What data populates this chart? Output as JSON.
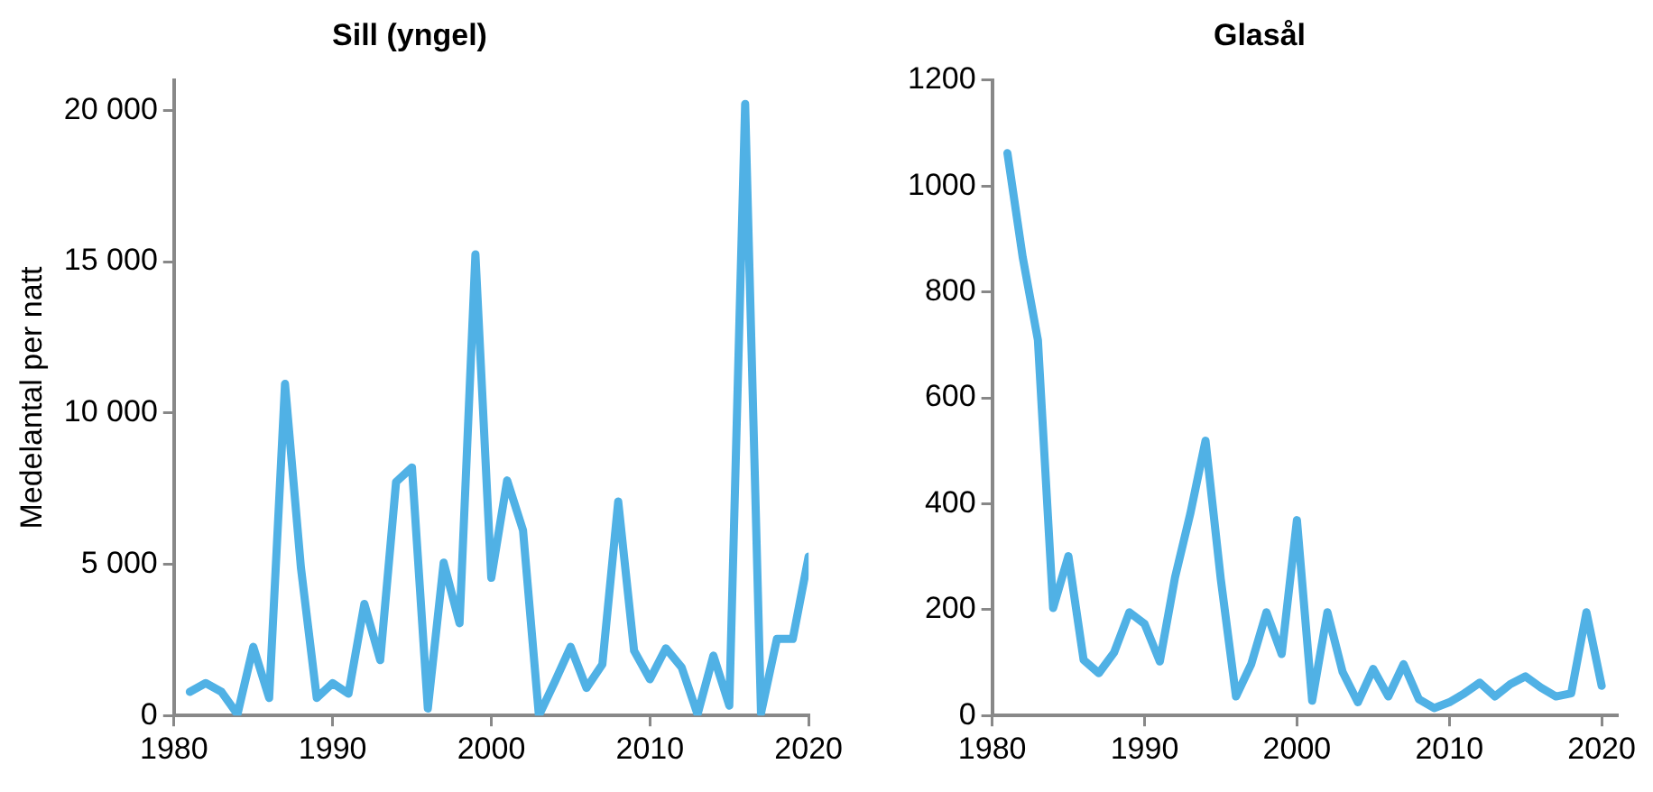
{
  "chart_data": [
    {
      "type": "line",
      "title": "Sill (yngel)",
      "ylabel": "Medelantal per natt",
      "color": "#50b1e5",
      "grid": false,
      "legend": false,
      "marker": "none",
      "line_style": "solid",
      "x": [
        1981,
        1982,
        1983,
        1984,
        1985,
        1986,
        1987,
        1988,
        1989,
        1990,
        1991,
        1992,
        1993,
        1994,
        1995,
        1996,
        1997,
        1998,
        1999,
        2000,
        2001,
        2002,
        2003,
        2004,
        2005,
        2006,
        2007,
        2008,
        2009,
        2010,
        2011,
        2012,
        2013,
        2014,
        2015,
        2016,
        2017,
        2018,
        2019,
        2020
      ],
      "values": [
        780,
        1070,
        780,
        40,
        2270,
        580,
        10960,
        4900,
        580,
        1070,
        720,
        3690,
        1830,
        7720,
        8200,
        230,
        5050,
        3050,
        15240,
        4550,
        7770,
        6120,
        0,
        1110,
        2270,
        910,
        1690,
        7070,
        2140,
        1200,
        2220,
        1590,
        40,
        1980,
        330,
        20210,
        80,
        2530,
        2530,
        5250
      ],
      "xlim": [
        1980,
        2020
      ],
      "xticks": [
        1980,
        1990,
        2000,
        2010,
        2020
      ],
      "ylim": [
        0,
        21000
      ],
      "yticks": [
        0,
        {
          "value": 5000,
          "label": "5 000"
        },
        {
          "value": 10000,
          "label": "10 000"
        },
        {
          "value": 15000,
          "label": "15 000"
        },
        {
          "value": 20000,
          "label": "20 000"
        }
      ]
    },
    {
      "type": "line",
      "title": "Glasål",
      "color": "#50b1e5",
      "grid": false,
      "legend": false,
      "marker": "none",
      "line_style": "solid",
      "x": [
        1981,
        1982,
        1983,
        1984,
        1985,
        1986,
        1987,
        1988,
        1989,
        1990,
        1991,
        1992,
        1993,
        1994,
        1995,
        1996,
        1997,
        1998,
        1999,
        2000,
        2001,
        2002,
        2003,
        2004,
        2005,
        2006,
        2007,
        2008,
        2009,
        2010,
        2011,
        2012,
        2013,
        2014,
        2015,
        2016,
        2017,
        2018,
        2019,
        2020
      ],
      "values": [
        1062,
        866,
        709,
        203,
        301,
        105,
        80,
        119,
        195,
        173,
        102,
        261,
        381,
        519,
        258,
        36,
        97,
        195,
        116,
        369,
        28,
        195,
        82,
        25,
        88,
        36,
        97,
        31,
        14,
        25,
        42,
        62,
        36,
        59,
        74,
        53,
        36,
        42,
        195,
        56
      ],
      "xlim": [
        1980,
        2021
      ],
      "xticks": [
        1980,
        1990,
        2000,
        2010,
        2020
      ],
      "ylim": [
        0,
        1200
      ],
      "yticks": [
        0,
        200,
        400,
        600,
        800,
        1000,
        1200
      ]
    }
  ]
}
